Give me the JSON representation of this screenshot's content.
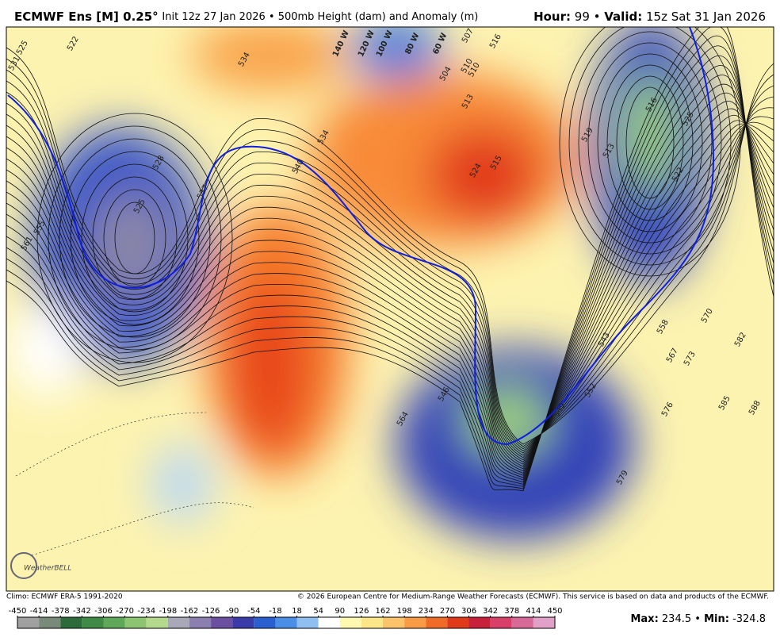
{
  "header": {
    "model": "ECMWF Ens [M] 0.25°",
    "description": "Init 12z 27 Jan 2026 • 500mb Height (dam) and Anomaly (m)",
    "hour_label": "Hour:",
    "hour": "99 •",
    "valid_label": "Valid:",
    "valid": "15z Sat 31 Jan 2026"
  },
  "map": {
    "contour_labels": [
      "522",
      "531",
      "525",
      "534",
      "528",
      "525",
      "537",
      "555",
      "561",
      "540",
      "534",
      "524",
      "515",
      "510",
      "507",
      "516",
      "510",
      "513",
      "504",
      "519",
      "513",
      "516",
      "525",
      "522",
      "543",
      "558",
      "570",
      "582",
      "567",
      "573",
      "585",
      "588",
      "576",
      "579",
      "546",
      "552",
      "549",
      "564"
    ],
    "longitude_labels": [
      "140 W",
      "120 W",
      "100 W",
      "80 W",
      "60 W"
    ],
    "logo": "WeatherBELL"
  },
  "footer": {
    "climo": "Climo: ECMWF ERA-5 1991-2020",
    "copyright": "© 2026 European Centre for Medium-Range Weather Forecasts (ECMWF). This service is based on data and products of the ECMWF."
  },
  "colorbar": {
    "ticks": [
      -450,
      -414,
      -378,
      -342,
      -306,
      -270,
      -234,
      -198,
      -162,
      -126,
      -90,
      -54,
      -18,
      18,
      54,
      90,
      126,
      162,
      198,
      234,
      270,
      306,
      342,
      378,
      414,
      450
    ],
    "colors": [
      "#a0a0a0",
      "#7a8a7a",
      "#2e6b3a",
      "#3f8a45",
      "#5ea85a",
      "#8cc472",
      "#b5d98c",
      "#a8a8b8",
      "#8a7fae",
      "#6b4fa0",
      "#3a3aa8",
      "#2a5fd0",
      "#4a8ee6",
      "#8fbef0",
      "#ffffff",
      "#fff8b0",
      "#fde68a",
      "#fcc46a",
      "#f99a45",
      "#f06a28",
      "#e03a1a",
      "#c8203a",
      "#d8406a",
      "#d86a9a",
      "#e0a0c8"
    ]
  },
  "stats": {
    "max_label": "Max:",
    "max": 234.5,
    "separator": "•",
    "min_label": "Min:",
    "min": -324.8
  }
}
